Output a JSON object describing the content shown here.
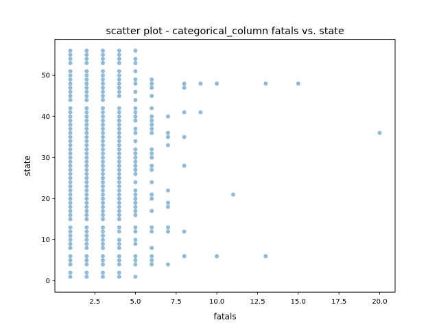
{
  "chart_data": {
    "type": "scatter",
    "title": "scatter plot - categorical_column fatals vs. state",
    "xlabel": "fatals",
    "ylabel": "state",
    "xlim": [
      0.05,
      20.95
    ],
    "ylim": [
      -2.75,
      58.75
    ],
    "xticks": [
      2.5,
      5.0,
      7.5,
      10.0,
      12.5,
      15.0,
      17.5,
      20.0
    ],
    "xtick_labels": [
      "2.5",
      "5.0",
      "7.5",
      "10.0",
      "12.5",
      "15.0",
      "17.5",
      "20.0"
    ],
    "yticks": [
      0,
      10,
      20,
      30,
      40,
      50
    ],
    "ytick_labels": [
      "0",
      "10",
      "20",
      "30",
      "40",
      "50"
    ],
    "grid": false,
    "marker_color": "#1f77b4",
    "marker_alpha": 0.5,
    "series": [
      {
        "points": [
          [
            1,
            1
          ],
          [
            1,
            2
          ],
          [
            1,
            4
          ],
          [
            1,
            5
          ],
          [
            1,
            6
          ],
          [
            1,
            8
          ],
          [
            1,
            9
          ],
          [
            1,
            10
          ],
          [
            1,
            11
          ],
          [
            1,
            12
          ],
          [
            1,
            13
          ],
          [
            1,
            15
          ],
          [
            1,
            16
          ],
          [
            1,
            17
          ],
          [
            1,
            18
          ],
          [
            1,
            19
          ],
          [
            1,
            20
          ],
          [
            1,
            21
          ],
          [
            1,
            22
          ],
          [
            1,
            23
          ],
          [
            1,
            24
          ],
          [
            1,
            25
          ],
          [
            1,
            26
          ],
          [
            1,
            27
          ],
          [
            1,
            28
          ],
          [
            1,
            29
          ],
          [
            1,
            30
          ],
          [
            1,
            31
          ],
          [
            1,
            32
          ],
          [
            1,
            33
          ],
          [
            1,
            34
          ],
          [
            1,
            35
          ],
          [
            1,
            36
          ],
          [
            1,
            37
          ],
          [
            1,
            38
          ],
          [
            1,
            39
          ],
          [
            1,
            40
          ],
          [
            1,
            41
          ],
          [
            1,
            42
          ],
          [
            1,
            44
          ],
          [
            1,
            45
          ],
          [
            1,
            46
          ],
          [
            1,
            47
          ],
          [
            1,
            48
          ],
          [
            1,
            49
          ],
          [
            1,
            50
          ],
          [
            1,
            51
          ],
          [
            1,
            53
          ],
          [
            1,
            54
          ],
          [
            1,
            55
          ],
          [
            1,
            56
          ],
          [
            2,
            1
          ],
          [
            2,
            2
          ],
          [
            2,
            4
          ],
          [
            2,
            5
          ],
          [
            2,
            6
          ],
          [
            2,
            8
          ],
          [
            2,
            9
          ],
          [
            2,
            10
          ],
          [
            2,
            11
          ],
          [
            2,
            12
          ],
          [
            2,
            13
          ],
          [
            2,
            15
          ],
          [
            2,
            16
          ],
          [
            2,
            17
          ],
          [
            2,
            18
          ],
          [
            2,
            19
          ],
          [
            2,
            20
          ],
          [
            2,
            21
          ],
          [
            2,
            22
          ],
          [
            2,
            23
          ],
          [
            2,
            24
          ],
          [
            2,
            25
          ],
          [
            2,
            26
          ],
          [
            2,
            27
          ],
          [
            2,
            28
          ],
          [
            2,
            29
          ],
          [
            2,
            30
          ],
          [
            2,
            31
          ],
          [
            2,
            32
          ],
          [
            2,
            33
          ],
          [
            2,
            34
          ],
          [
            2,
            35
          ],
          [
            2,
            36
          ],
          [
            2,
            37
          ],
          [
            2,
            38
          ],
          [
            2,
            39
          ],
          [
            2,
            40
          ],
          [
            2,
            41
          ],
          [
            2,
            42
          ],
          [
            2,
            44
          ],
          [
            2,
            45
          ],
          [
            2,
            46
          ],
          [
            2,
            47
          ],
          [
            2,
            48
          ],
          [
            2,
            49
          ],
          [
            2,
            50
          ],
          [
            2,
            51
          ],
          [
            2,
            53
          ],
          [
            2,
            54
          ],
          [
            2,
            55
          ],
          [
            2,
            56
          ],
          [
            3,
            1
          ],
          [
            3,
            2
          ],
          [
            3,
            4
          ],
          [
            3,
            5
          ],
          [
            3,
            6
          ],
          [
            3,
            8
          ],
          [
            3,
            9
          ],
          [
            3,
            10
          ],
          [
            3,
            11
          ],
          [
            3,
            12
          ],
          [
            3,
            13
          ],
          [
            3,
            15
          ],
          [
            3,
            16
          ],
          [
            3,
            17
          ],
          [
            3,
            18
          ],
          [
            3,
            19
          ],
          [
            3,
            20
          ],
          [
            3,
            21
          ],
          [
            3,
            22
          ],
          [
            3,
            23
          ],
          [
            3,
            24
          ],
          [
            3,
            25
          ],
          [
            3,
            26
          ],
          [
            3,
            27
          ],
          [
            3,
            28
          ],
          [
            3,
            29
          ],
          [
            3,
            30
          ],
          [
            3,
            31
          ],
          [
            3,
            32
          ],
          [
            3,
            33
          ],
          [
            3,
            34
          ],
          [
            3,
            35
          ],
          [
            3,
            36
          ],
          [
            3,
            37
          ],
          [
            3,
            38
          ],
          [
            3,
            39
          ],
          [
            3,
            40
          ],
          [
            3,
            41
          ],
          [
            3,
            42
          ],
          [
            3,
            44
          ],
          [
            3,
            45
          ],
          [
            3,
            46
          ],
          [
            3,
            47
          ],
          [
            3,
            48
          ],
          [
            3,
            49
          ],
          [
            3,
            50
          ],
          [
            3,
            51
          ],
          [
            3,
            53
          ],
          [
            3,
            54
          ],
          [
            3,
            55
          ],
          [
            3,
            56
          ],
          [
            4,
            1
          ],
          [
            4,
            2
          ],
          [
            4,
            4
          ],
          [
            4,
            5
          ],
          [
            4,
            6
          ],
          [
            4,
            8
          ],
          [
            4,
            9
          ],
          [
            4,
            10
          ],
          [
            4,
            12
          ],
          [
            4,
            13
          ],
          [
            4,
            15
          ],
          [
            4,
            16
          ],
          [
            4,
            17
          ],
          [
            4,
            18
          ],
          [
            4,
            19
          ],
          [
            4,
            20
          ],
          [
            4,
            21
          ],
          [
            4,
            22
          ],
          [
            4,
            23
          ],
          [
            4,
            24
          ],
          [
            4,
            25
          ],
          [
            4,
            26
          ],
          [
            4,
            27
          ],
          [
            4,
            28
          ],
          [
            4,
            29
          ],
          [
            4,
            30
          ],
          [
            4,
            31
          ],
          [
            4,
            32
          ],
          [
            4,
            33
          ],
          [
            4,
            34
          ],
          [
            4,
            35
          ],
          [
            4,
            36
          ],
          [
            4,
            37
          ],
          [
            4,
            38
          ],
          [
            4,
            39
          ],
          [
            4,
            40
          ],
          [
            4,
            41
          ],
          [
            4,
            42
          ],
          [
            4,
            45
          ],
          [
            4,
            46
          ],
          [
            4,
            47
          ],
          [
            4,
            48
          ],
          [
            4,
            49
          ],
          [
            4,
            50
          ],
          [
            4,
            51
          ],
          [
            4,
            53
          ],
          [
            4,
            54
          ],
          [
            4,
            55
          ],
          [
            4,
            56
          ],
          [
            5,
            1
          ],
          [
            5,
            4
          ],
          [
            5,
            5
          ],
          [
            5,
            6
          ],
          [
            5,
            9
          ],
          [
            5,
            10
          ],
          [
            5,
            12
          ],
          [
            5,
            13
          ],
          [
            5,
            16
          ],
          [
            5,
            17
          ],
          [
            5,
            18
          ],
          [
            5,
            19
          ],
          [
            5,
            20
          ],
          [
            5,
            21
          ],
          [
            5,
            22
          ],
          [
            5,
            24
          ],
          [
            5,
            26
          ],
          [
            5,
            27
          ],
          [
            5,
            28
          ],
          [
            5,
            29
          ],
          [
            5,
            30
          ],
          [
            5,
            31
          ],
          [
            5,
            32
          ],
          [
            5,
            34
          ],
          [
            5,
            36
          ],
          [
            5,
            37
          ],
          [
            5,
            39
          ],
          [
            5,
            40
          ],
          [
            5,
            41
          ],
          [
            5,
            42
          ],
          [
            5,
            44
          ],
          [
            5,
            46
          ],
          [
            5,
            48
          ],
          [
            5,
            49
          ],
          [
            5,
            51
          ],
          [
            5,
            53
          ],
          [
            5,
            54
          ],
          [
            5,
            56
          ],
          [
            6,
            4
          ],
          [
            6,
            5
          ],
          [
            6,
            6
          ],
          [
            6,
            8
          ],
          [
            6,
            12
          ],
          [
            6,
            13
          ],
          [
            6,
            17
          ],
          [
            6,
            20
          ],
          [
            6,
            21
          ],
          [
            6,
            24
          ],
          [
            6,
            27
          ],
          [
            6,
            28
          ],
          [
            6,
            30
          ],
          [
            6,
            31
          ],
          [
            6,
            32
          ],
          [
            6,
            36
          ],
          [
            6,
            37
          ],
          [
            6,
            38
          ],
          [
            6,
            39
          ],
          [
            6,
            40
          ],
          [
            6,
            42
          ],
          [
            6,
            45
          ],
          [
            6,
            47
          ],
          [
            6,
            48
          ],
          [
            6,
            49
          ],
          [
            7,
            4
          ],
          [
            7,
            12
          ],
          [
            7,
            13
          ],
          [
            7,
            18
          ],
          [
            7,
            19
          ],
          [
            7,
            22
          ],
          [
            7,
            33
          ],
          [
            7,
            35
          ],
          [
            7,
            36
          ],
          [
            7,
            40
          ],
          [
            8,
            6
          ],
          [
            8,
            12
          ],
          [
            8,
            28
          ],
          [
            8,
            35
          ],
          [
            8,
            41
          ],
          [
            8,
            47
          ],
          [
            8,
            48
          ],
          [
            9,
            41
          ],
          [
            9,
            48
          ],
          [
            10,
            6
          ],
          [
            10,
            48
          ],
          [
            11,
            21
          ],
          [
            13,
            6
          ],
          [
            13,
            48
          ],
          [
            15,
            48
          ],
          [
            20,
            36
          ]
        ]
      }
    ]
  }
}
